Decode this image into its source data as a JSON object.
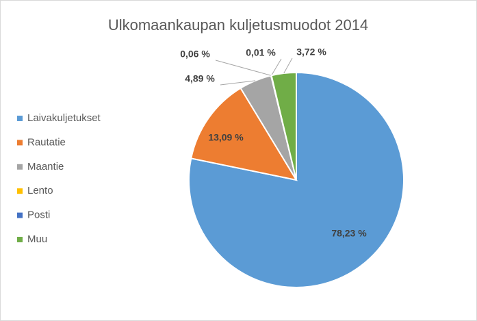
{
  "chart_data": {
    "type": "pie",
    "title": "Ulkomaankaupan kuljetusmuodot 2014",
    "categories": [
      "Laivakuljetukset",
      "Rautatie",
      "Maantie",
      "Lento",
      "Posti",
      "Muu"
    ],
    "values": [
      78.23,
      13.09,
      4.89,
      0.06,
      0.01,
      3.72
    ],
    "value_labels": [
      "78,23 %",
      "13,09 %",
      "4,89 %",
      "0,06 %",
      "0,01 %",
      "3,72 %"
    ],
    "colors": [
      "#5b9bd5",
      "#ed7d31",
      "#a5a5a5",
      "#ffc000",
      "#4472c4",
      "#70ad47"
    ],
    "legend": "left"
  }
}
